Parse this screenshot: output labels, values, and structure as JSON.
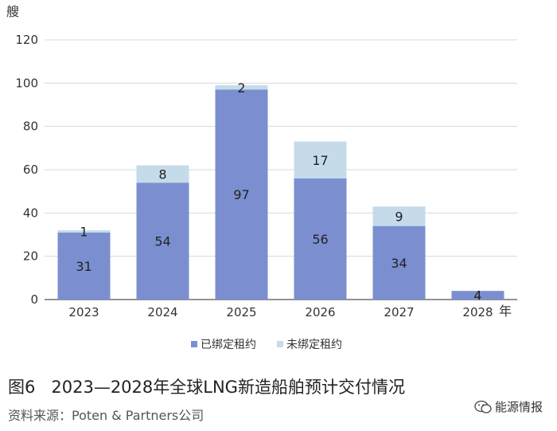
{
  "chart_data": {
    "type": "bar",
    "stacked": true,
    "ylabel": "艘",
    "xlabel_suffix": "年",
    "ylim": [
      0,
      120
    ],
    "yticks": [
      0,
      20,
      40,
      60,
      80,
      100,
      120
    ],
    "categories": [
      "2023",
      "2024",
      "2025",
      "2026",
      "2027",
      "2028"
    ],
    "series": [
      {
        "name": "已绑定租约",
        "values": [
          31,
          54,
          97,
          56,
          34,
          4
        ],
        "color": "#7b8fd0"
      },
      {
        "name": "未绑定租约",
        "values": [
          1,
          8,
          2,
          17,
          9,
          null
        ],
        "color": "#c5dbea"
      }
    ],
    "legend_position": "bottom",
    "grid": true
  },
  "caption": {
    "fig": "图6",
    "title": "2023—2028年全球LNG新造船舶预计交付情况"
  },
  "source": "资料来源：Poten & Partners公司",
  "watermark": "能源情报"
}
